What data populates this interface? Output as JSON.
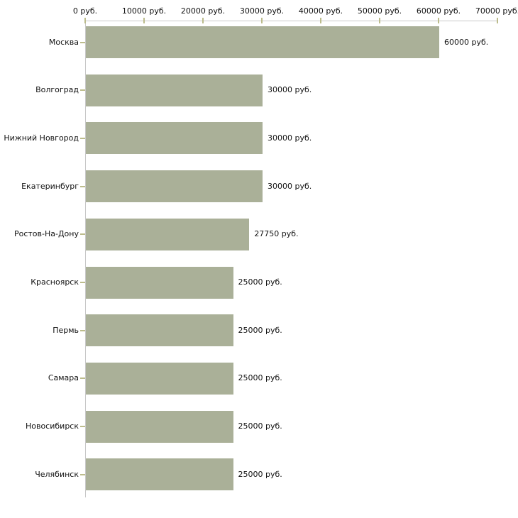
{
  "chart_data": {
    "type": "bar",
    "orientation": "horizontal",
    "title": "",
    "xlabel": "",
    "ylabel": "",
    "xlim": [
      0,
      70000
    ],
    "x_tick_values": [
      0,
      10000,
      20000,
      30000,
      40000,
      50000,
      60000,
      70000
    ],
    "x_tick_labels": [
      "0 руб.",
      "10000 руб.",
      "20000 руб.",
      "30000 руб.",
      "40000 руб.",
      "50000 руб.",
      "60000 руб.",
      "70000 руб."
    ],
    "categories": [
      "Москва",
      "Волгоград",
      "Нижний Новгород",
      "Екатеринбург",
      "Ростов-На-Дону",
      "Красноярск",
      "Пермь",
      "Самара",
      "Новосибирск",
      "Челябинск"
    ],
    "values": [
      60000,
      30000,
      30000,
      30000,
      27750,
      25000,
      25000,
      25000,
      25000,
      25000
    ],
    "value_labels": [
      "60000 руб.",
      "30000 руб.",
      "30000 руб.",
      "30000 руб.",
      "27750 руб.",
      "25000 руб.",
      "25000 руб.",
      "25000 руб.",
      "25000 руб.",
      "25000 руб."
    ],
    "unit": "руб.",
    "grid": false,
    "legend": false,
    "colors": {
      "bar": "#aab098",
      "axis_line": "#c8c8c8",
      "tick": "#bcbc8c",
      "text": "#111111",
      "background": "#ffffff"
    }
  }
}
